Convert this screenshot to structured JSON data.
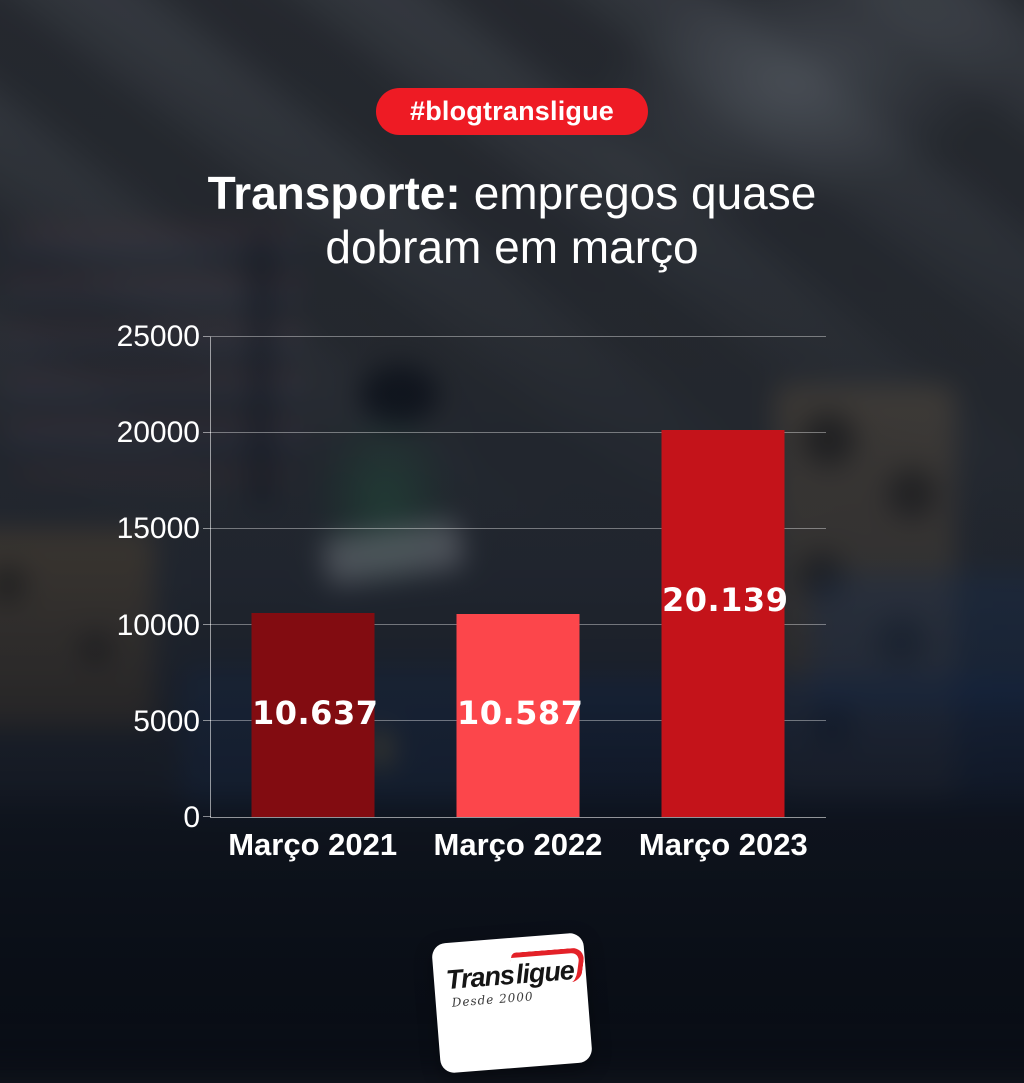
{
  "badge": {
    "label": "#blogtransligue"
  },
  "title": {
    "line1_bold": "Transporte:",
    "line1_rest": "empregos quase",
    "line2": "dobram em março"
  },
  "chart_data": {
    "type": "bar",
    "title": "Transporte: empregos quase dobram em março",
    "categories": [
      "Março 2021",
      "Março 2022",
      "Março 2023"
    ],
    "values": [
      10637,
      10587,
      20139
    ],
    "value_labels": [
      "10.637",
      "10.587",
      "20.139"
    ],
    "bar_colors": [
      "#820C11",
      "#FC464B",
      "#C4131A"
    ],
    "value_label_pos_from_top": [
      0.49,
      0.49,
      0.44
    ],
    "xlabel": "",
    "ylabel": "",
    "ylim": [
      0,
      25000
    ],
    "yticks": [
      0,
      5000,
      10000,
      15000,
      20000,
      25000
    ],
    "ytick_labels": [
      "0",
      "5000",
      "10000",
      "15000",
      "20000",
      "25000"
    ],
    "grid": true,
    "legend": false
  },
  "logo": {
    "part1": "Trans",
    "part2": "ligue",
    "tagline": "Desde 2000"
  },
  "colors": {
    "badge_red": "#EE1B24",
    "grid_line": "rgba(255,255,255,0.38)",
    "text": "#FFFFFF"
  }
}
